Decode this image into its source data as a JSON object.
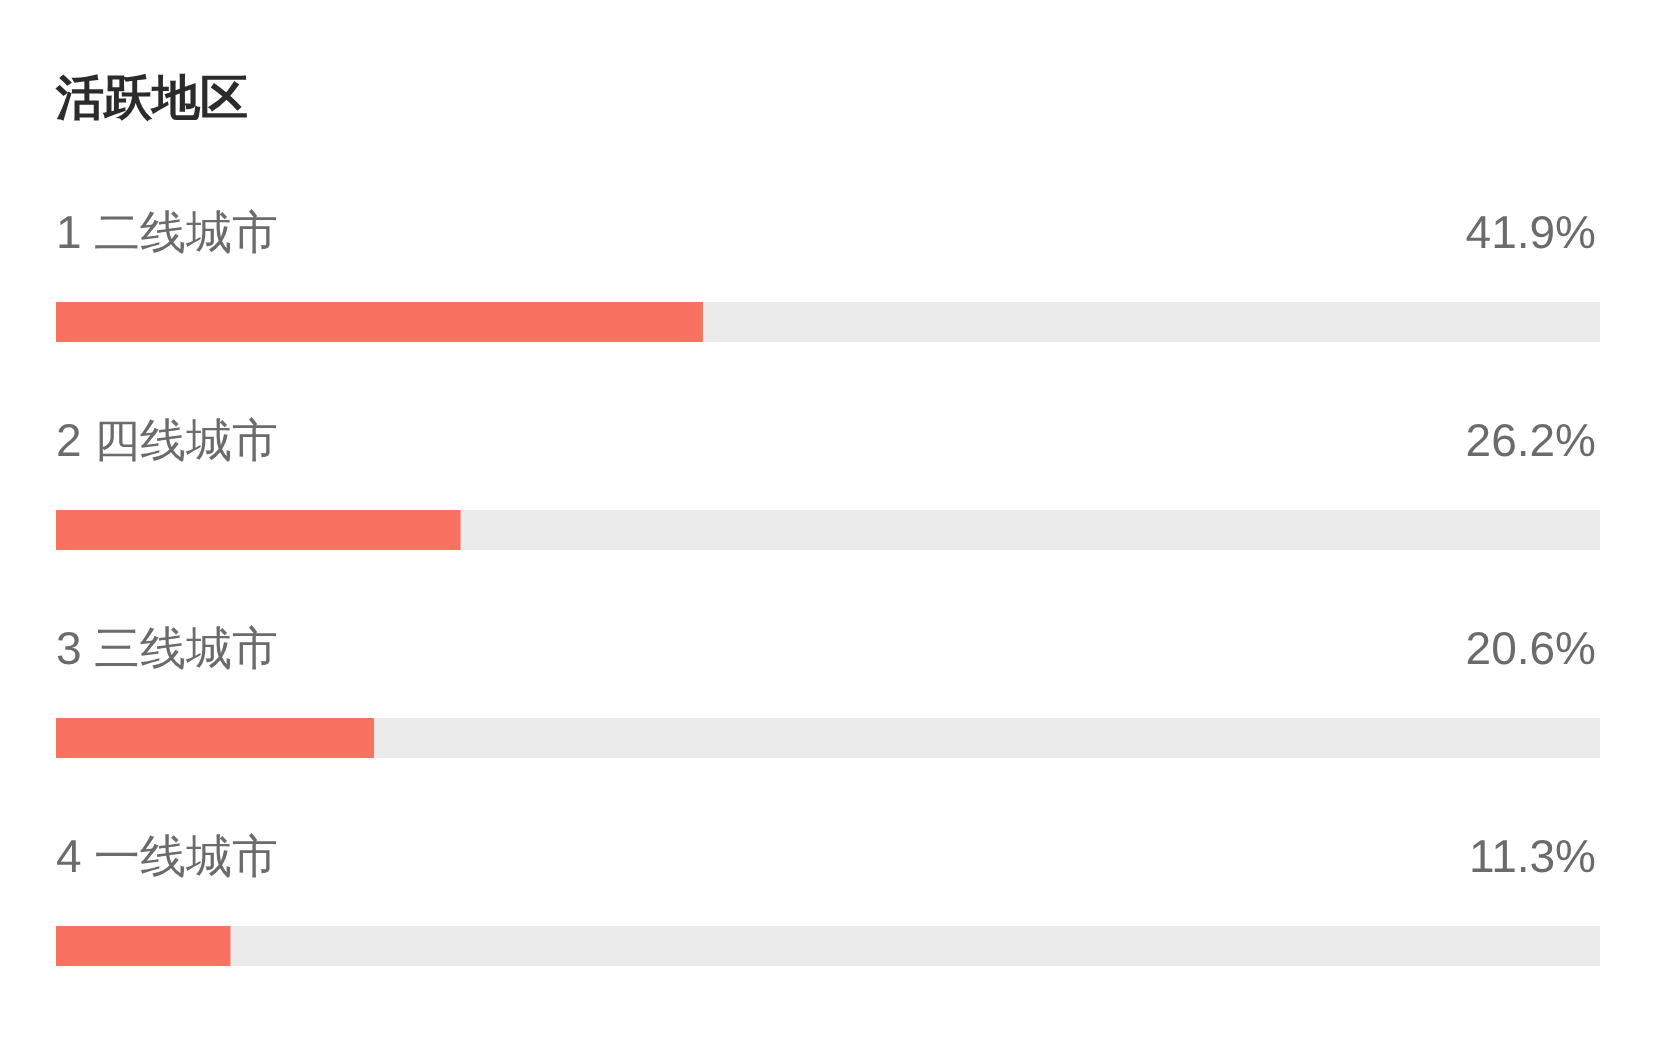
{
  "chart_data": {
    "type": "bar",
    "orientation": "horizontal",
    "title": "活跃地区",
    "categories": [
      "1 二线城市",
      "2 四线城市",
      "3 三线城市",
      "4 一线城市"
    ],
    "values": [
      41.9,
      26.2,
      20.6,
      11.3
    ],
    "value_labels": [
      "41.9%",
      "26.2%",
      "20.6%",
      "11.3%"
    ],
    "color": "#f8725f",
    "xlim": [
      0,
      100
    ]
  }
}
